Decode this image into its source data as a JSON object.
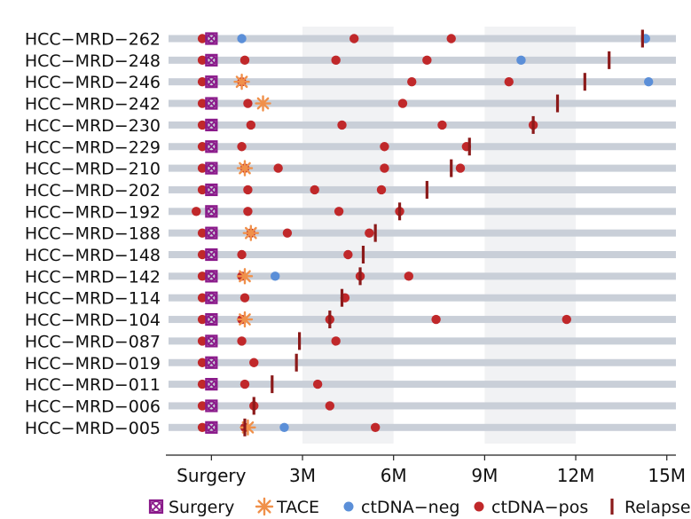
{
  "chart_data": {
    "type": "scatter",
    "subtype": "swimmer",
    "title": "",
    "xlabel": "",
    "ylabel": "",
    "xlim": [
      -1.5,
      15.3
    ],
    "x_ticks": [
      {
        "value": 0,
        "label": "Surgery"
      },
      {
        "value": 3,
        "label": "3M"
      },
      {
        "value": 6,
        "label": "6M"
      },
      {
        "value": 9,
        "label": "9M"
      },
      {
        "value": 12,
        "label": "12M"
      },
      {
        "value": 15,
        "label": "15M"
      }
    ],
    "shaded_bands": [
      [
        3,
        6
      ],
      [
        9,
        12
      ]
    ],
    "legend_position": "bottom",
    "legend": [
      {
        "key": "surgery",
        "label": "Surgery"
      },
      {
        "key": "tace",
        "label": "TACE"
      },
      {
        "key": "neg",
        "label": "ctDNA−neg"
      },
      {
        "key": "pos",
        "label": "ctDNA−pos"
      },
      {
        "key": "relapse",
        "label": "Relapse"
      }
    ],
    "colors": {
      "surgery": "#8a1a8a",
      "tace": "#f0904a",
      "neg": "#5b8fd8",
      "pos": "#c0282a",
      "relapse": "#8b1a1a",
      "lane": "#c9cfd8",
      "band": "#f1f2f4"
    },
    "patients": [
      {
        "id": "HCC−MRD−262",
        "pos": [
          -0.3,
          4.7,
          7.9
        ],
        "neg": [
          1.0,
          14.3
        ],
        "tace": [],
        "relapse": 14.2,
        "surgery": 0
      },
      {
        "id": "HCC−MRD−248",
        "pos": [
          -0.3,
          1.1,
          4.1,
          7.1
        ],
        "neg": [
          10.2
        ],
        "tace": [],
        "relapse": 13.1,
        "surgery": 0
      },
      {
        "id": "HCC−MRD−246",
        "pos": [
          -0.3,
          1.0,
          6.6,
          9.8
        ],
        "neg": [
          14.4
        ],
        "tace": [
          1.0
        ],
        "relapse": 12.3,
        "surgery": 0
      },
      {
        "id": "HCC−MRD−242",
        "pos": [
          -0.3,
          1.2,
          6.3
        ],
        "neg": [],
        "tace": [
          1.7
        ],
        "relapse": 11.4,
        "surgery": 0
      },
      {
        "id": "HCC−MRD−230",
        "pos": [
          -0.3,
          1.3,
          4.3,
          7.6,
          10.6
        ],
        "neg": [],
        "tace": [],
        "relapse": 10.6,
        "surgery": 0
      },
      {
        "id": "HCC−MRD−229",
        "pos": [
          -0.3,
          1.0,
          5.7,
          8.4
        ],
        "neg": [],
        "tace": [],
        "relapse": 8.5,
        "surgery": 0
      },
      {
        "id": "HCC−MRD−210",
        "pos": [
          -0.3,
          1.1,
          2.2,
          5.7,
          8.2
        ],
        "neg": [],
        "tace": [
          1.1
        ],
        "relapse": 7.9,
        "surgery": 0
      },
      {
        "id": "HCC−MRD−202",
        "pos": [
          -0.3,
          1.2,
          3.4,
          5.6
        ],
        "neg": [],
        "tace": [],
        "relapse": 7.1,
        "surgery": 0
      },
      {
        "id": "HCC−MRD−192",
        "pos": [
          -0.5,
          1.2,
          4.2,
          6.2
        ],
        "neg": [],
        "tace": [],
        "relapse": 6.2,
        "surgery": 0
      },
      {
        "id": "HCC−MRD−188",
        "pos": [
          -0.3,
          1.3,
          2.5,
          5.2
        ],
        "neg": [],
        "tace": [
          1.3
        ],
        "relapse": 5.4,
        "surgery": 0
      },
      {
        "id": "HCC−MRD−148",
        "pos": [
          -0.3,
          1.0,
          4.5
        ],
        "neg": [],
        "tace": [],
        "relapse": 5.0,
        "surgery": 0
      },
      {
        "id": "HCC−MRD−142",
        "pos": [
          -0.3,
          1.0,
          4.9,
          6.5
        ],
        "neg": [
          2.1
        ],
        "tace": [
          1.1
        ],
        "relapse": 4.9,
        "surgery": 0
      },
      {
        "id": "HCC−MRD−114",
        "pos": [
          -0.3,
          1.1,
          4.4
        ],
        "neg": [],
        "tace": [],
        "relapse": 4.3,
        "surgery": 0
      },
      {
        "id": "HCC−MRD−104",
        "pos": [
          -0.3,
          1.0,
          3.9,
          7.4,
          11.7
        ],
        "neg": [],
        "tace": [
          1.1
        ],
        "relapse": 3.9,
        "surgery": 0
      },
      {
        "id": "HCC−MRD−087",
        "pos": [
          -0.3,
          1.0,
          4.1
        ],
        "neg": [],
        "tace": [],
        "relapse": 2.9,
        "surgery": 0
      },
      {
        "id": "HCC−MRD−019",
        "pos": [
          -0.3,
          1.4
        ],
        "neg": [],
        "tace": [],
        "relapse": 2.8,
        "surgery": 0
      },
      {
        "id": "HCC−MRD−011",
        "pos": [
          -0.3,
          1.1,
          3.5
        ],
        "neg": [],
        "tace": [],
        "relapse": 2.0,
        "surgery": 0
      },
      {
        "id": "HCC−MRD−006",
        "pos": [
          -0.3,
          1.4,
          3.9
        ],
        "neg": [],
        "tace": [],
        "relapse": 1.4,
        "surgery": 0
      },
      {
        "id": "HCC−MRD−005",
        "pos": [
          -0.3,
          1.1,
          5.4
        ],
        "neg": [
          2.4
        ],
        "tace": [
          1.2
        ],
        "relapse": 1.1,
        "surgery": 0
      }
    ]
  }
}
